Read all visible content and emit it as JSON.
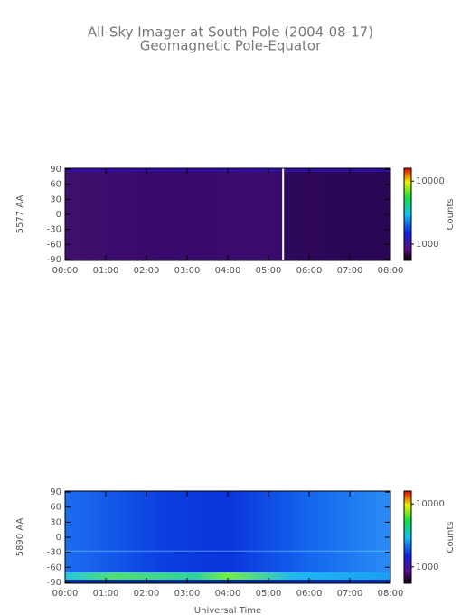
{
  "chart_data": [
    {
      "type": "heatmap",
      "title": "All-Sky Imager at South Pole (2004-08-17)",
      "subtitle": "Geomagnetic Pole-Equator",
      "ylabel": "5577 AA",
      "ylim": [
        -92,
        92
      ],
      "yticks": [
        90,
        60,
        30,
        0,
        -30,
        -60,
        -90
      ],
      "xlim": [
        0,
        8
      ],
      "xticks": [
        {
          "value": 0,
          "label": "00:00"
        },
        {
          "value": 1,
          "label": "01:00"
        },
        {
          "value": 2,
          "label": "02:00"
        },
        {
          "value": 3,
          "label": "03:00"
        },
        {
          "value": 4,
          "label": "04:00"
        },
        {
          "value": 5,
          "label": "05:00"
        },
        {
          "value": 6,
          "label": "06:00"
        },
        {
          "value": 7,
          "label": "07:00"
        },
        {
          "value": 8,
          "label": "08:00"
        }
      ],
      "colorbar": {
        "scale": "log",
        "lim": [
          550,
          16000
        ],
        "ticks": [
          10000,
          1000
        ],
        "label": "Counts"
      }
    },
    {
      "type": "heatmap",
      "ylabel": "5890 AA",
      "xlabel": "Universal Time",
      "ylim": [
        -92,
        92
      ],
      "yticks": [
        90,
        60,
        30,
        0,
        -30,
        -60,
        -90
      ],
      "xlim": [
        0,
        8
      ],
      "xticks": [
        {
          "value": 0,
          "label": "00:00"
        },
        {
          "value": 1,
          "label": "01:00"
        },
        {
          "value": 2,
          "label": "02:00"
        },
        {
          "value": 3,
          "label": "03:00"
        },
        {
          "value": 4,
          "label": "04:00"
        },
        {
          "value": 5,
          "label": "05:00"
        },
        {
          "value": 6,
          "label": "06:00"
        },
        {
          "value": 7,
          "label": "07:00"
        },
        {
          "value": 8,
          "label": "08:00"
        }
      ],
      "colorbar": {
        "scale": "log",
        "lim": [
          550,
          16000
        ],
        "ticks": [
          10000,
          1000
        ],
        "label": "Counts"
      }
    }
  ]
}
